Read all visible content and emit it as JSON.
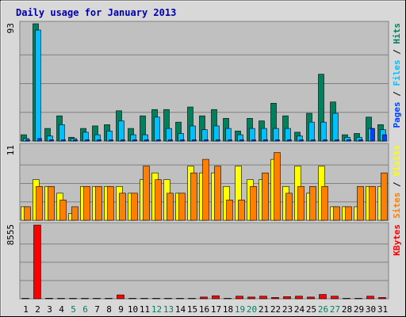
{
  "chart_data": {
    "title": "Daily usage for January 2013",
    "type": "bar",
    "colors": {
      "frame_bg": "#d8d8d8",
      "plot_bg": "#c0c0c0",
      "title": "#0000aa",
      "hits": "#00805c",
      "files": "#00c0ff",
      "pages": "#0040ff",
      "visits": "#ffff00",
      "sites": "#ff8000",
      "kbytes": "#ff0000",
      "weekend_label": "#00805c",
      "weekday_label": "#000000"
    },
    "days": [
      "1",
      "2",
      "3",
      "4",
      "5",
      "6",
      "7",
      "8",
      "9",
      "10",
      "11",
      "12",
      "13",
      "14",
      "15",
      "16",
      "17",
      "18",
      "19",
      "20",
      "21",
      "22",
      "23",
      "24",
      "25",
      "26",
      "27",
      "28",
      "29",
      "30",
      "31"
    ],
    "weekend_days": [
      "5",
      "6",
      "12",
      "13",
      "19",
      "20",
      "26",
      "27"
    ],
    "top_panel": {
      "ymax_label": "93",
      "ymax": 93,
      "legend": [
        "Pages",
        "Files",
        "Hits"
      ],
      "series": [
        {
          "name": "Hits",
          "values": [
            5,
            93,
            10,
            20,
            3,
            10,
            12,
            13,
            24,
            10,
            20,
            25,
            25,
            15,
            27,
            20,
            25,
            18,
            8,
            18,
            16,
            30,
            20,
            7,
            22,
            53,
            31,
            5,
            6,
            19,
            13
          ]
        },
        {
          "name": "Files",
          "values": [
            2,
            88,
            4,
            13,
            2,
            7,
            5,
            8,
            16,
            5,
            5,
            19,
            10,
            6,
            12,
            9,
            12,
            10,
            5,
            10,
            10,
            10,
            10,
            4,
            15,
            15,
            22,
            3,
            3,
            10,
            9
          ]
        },
        {
          "name": "Pages",
          "values": [
            1,
            2,
            1,
            1,
            1,
            1,
            1,
            1,
            1,
            1,
            1,
            1,
            1,
            1,
            1,
            1,
            1,
            1,
            1,
            1,
            1,
            1,
            1,
            1,
            1,
            1,
            1,
            1,
            1,
            10,
            5
          ]
        }
      ]
    },
    "middle_panel": {
      "ymax_label": "11",
      "ymax": 11,
      "legend": [
        "Sites",
        "Visits"
      ],
      "series": [
        {
          "name": "Visits",
          "values": [
            2,
            6,
            5,
            4,
            1,
            5,
            5,
            5,
            5,
            4,
            6,
            7,
            6,
            4,
            8,
            7,
            7,
            5,
            8,
            6,
            6,
            9,
            5,
            8,
            4,
            8,
            2,
            2,
            2,
            5,
            5
          ]
        },
        {
          "name": "Sites",
          "values": [
            2,
            5,
            5,
            3,
            2,
            5,
            5,
            5,
            4,
            4,
            8,
            6,
            4,
            4,
            7,
            9,
            8,
            3,
            3,
            5,
            7,
            10,
            4,
            5,
            5,
            5,
            2,
            2,
            5,
            5,
            7
          ]
        }
      ]
    },
    "bottom_panel": {
      "ymax_label": "8555",
      "ymax": 8555,
      "legend": [
        "KBytes"
      ],
      "series": [
        {
          "name": "KBytes",
          "values": [
            50,
            8555,
            60,
            50,
            50,
            50,
            50,
            50,
            450,
            50,
            50,
            50,
            50,
            50,
            50,
            200,
            350,
            50,
            300,
            200,
            300,
            150,
            250,
            300,
            200,
            500,
            300,
            50,
            50,
            300,
            150
          ]
        }
      ]
    }
  }
}
